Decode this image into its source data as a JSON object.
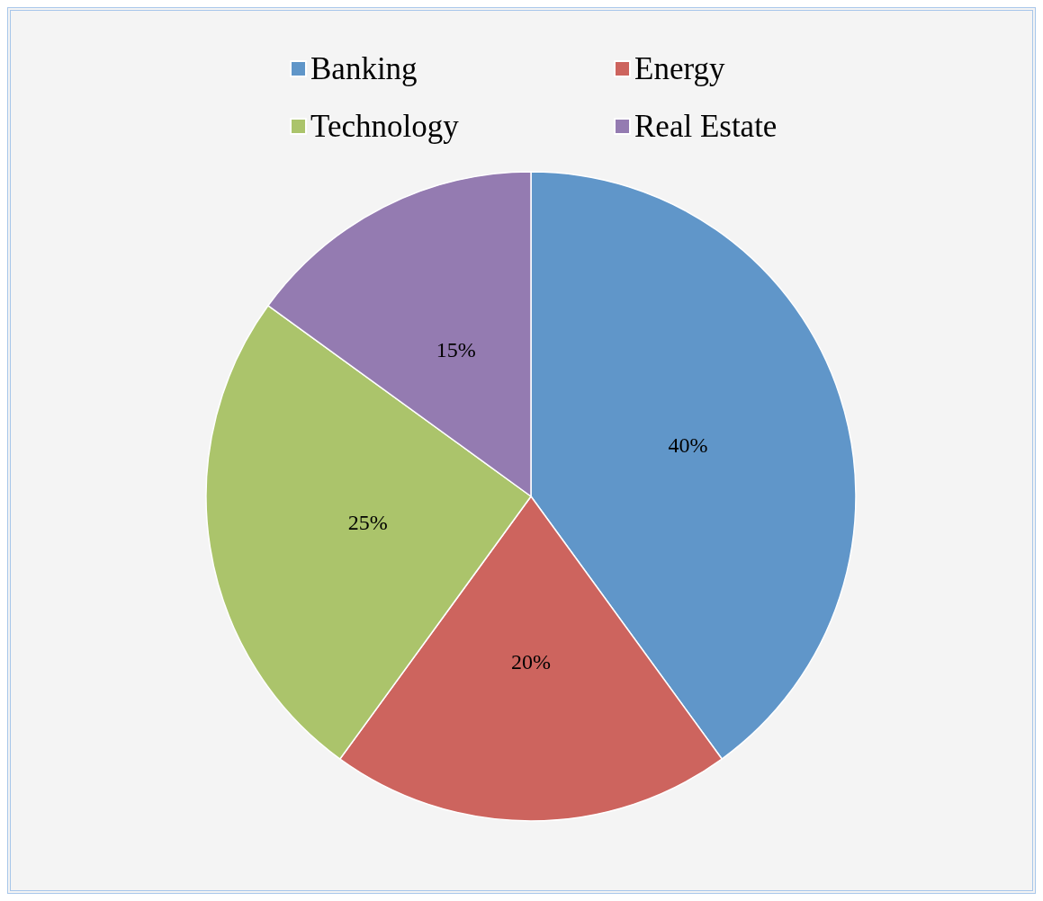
{
  "chart_data": {
    "type": "pie",
    "categories": [
      "Banking",
      "Energy",
      "Technology",
      "Real Estate"
    ],
    "values": [
      40,
      20,
      25,
      15
    ],
    "colors": [
      "#6096c9",
      "#cd645e",
      "#abc46b",
      "#947bb1"
    ],
    "value_labels": [
      "40%",
      "20%",
      "25%",
      "15%"
    ],
    "legend": "top"
  }
}
